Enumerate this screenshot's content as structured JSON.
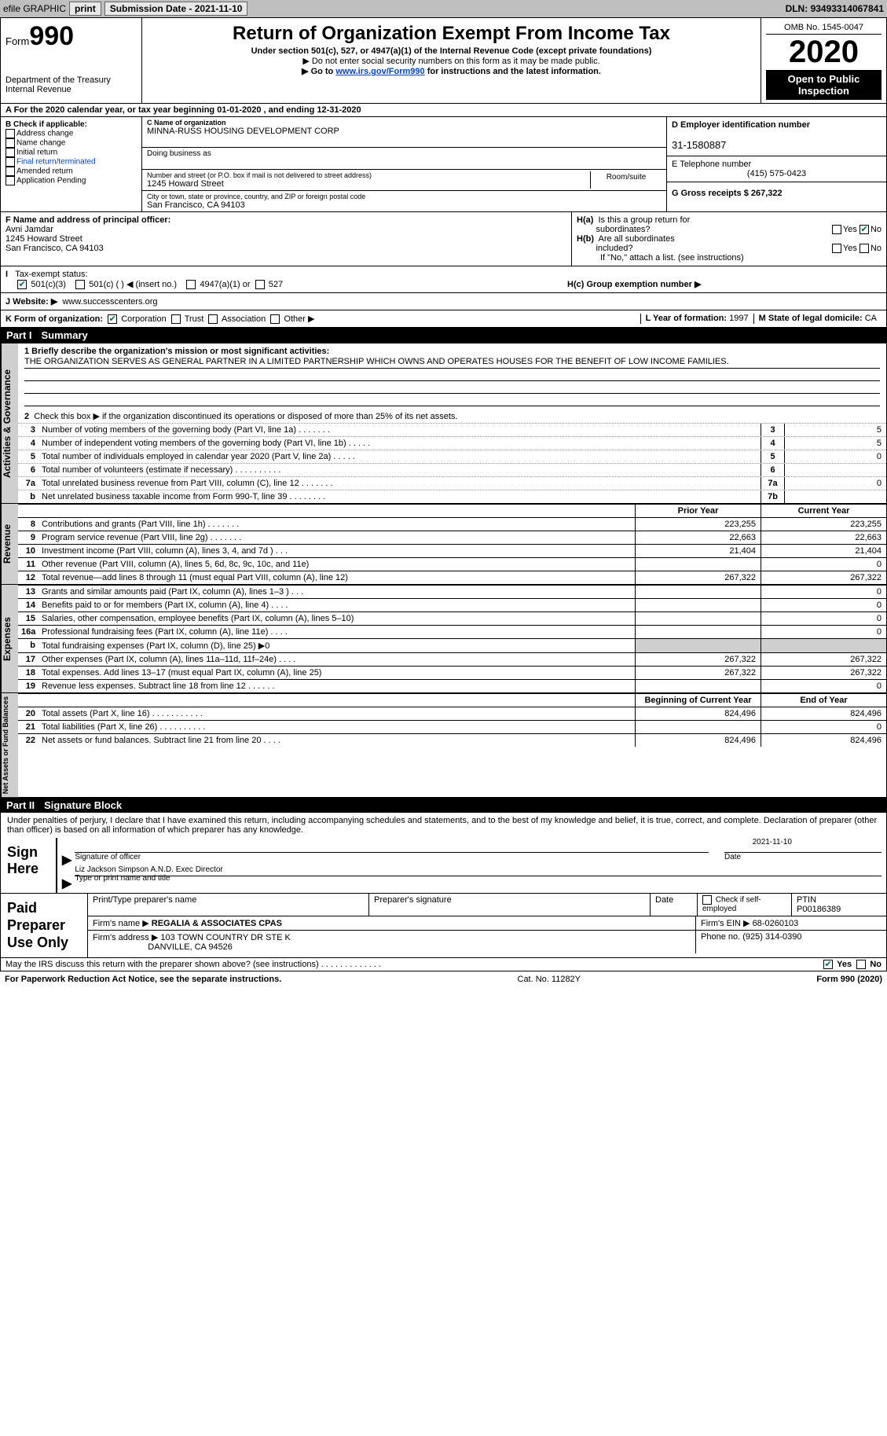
{
  "colors": {
    "header_bg": "#bfbfbf",
    "black": "#000000",
    "shade": "#cfcfcf",
    "link": "#0645ad",
    "check": "#00695c"
  },
  "top": {
    "efile": "efile GRAPHIC",
    "print": "print",
    "subdate_label": "Submission Date - ",
    "subdate": "2021-11-10",
    "dln_label": "DLN: ",
    "dln": "93493314067841"
  },
  "header": {
    "form_word": "Form",
    "form_num": "990",
    "dept": "Department of the Treasury",
    "irs": "Internal Revenue",
    "title": "Return of Organization Exempt From Income Tax",
    "sub": "Under section 501(c), 527, or 4947(a)(1) of the Internal Revenue Code (except private foundations)",
    "note1": "▶ Do not enter social security numbers on this form as it may be made public.",
    "note2_pre": "▶ Go to ",
    "note2_link": "www.irs.gov/Form990",
    "note2_post": " for instructions and the latest information.",
    "omb": "OMB No. 1545-0047",
    "year": "2020",
    "open1": "Open to Public",
    "open2": "Inspection"
  },
  "rowA": "A For the 2020 calendar year, or tax year beginning 01-01-2020   , and ending 12-31-2020",
  "colB": {
    "title": "B Check if applicable:",
    "opts": [
      "Address change",
      "Name change",
      "Initial return",
      "Final return/terminated",
      "Amended return",
      "Application Pending"
    ]
  },
  "colC": {
    "name_label": "C Name of organization",
    "name": "MINNA-RUSS HOUSING DEVELOPMENT CORP",
    "dba_label": "Doing business as",
    "dba": "",
    "addr_label": "Number and street (or P.O. box if mail is not delivered to street address)",
    "room": "Room/suite",
    "addr": "1245 Howard Street",
    "city_label": "City or town, state or province, country, and ZIP or foreign postal code",
    "city": "San Francisco, CA  94103"
  },
  "colD": {
    "d_label": "D Employer identification number",
    "ein": "31-1580887",
    "e_label": "E Telephone number",
    "phone": "(415) 575-0423",
    "g_label": "G Gross receipts $ ",
    "gross": "267,322"
  },
  "rowF": {
    "f_label": "F  Name and address of principal officer:",
    "f_name": "Avni Jamdar",
    "f_addr1": "1245 Howard Street",
    "f_addr2": "San Francisco, CA  94103",
    "ha_label": "H(a)  Is this a group return for subordinates?",
    "ha_yes": "Yes",
    "ha_no": "No",
    "hb_label": "H(b)  Are all subordinates included?",
    "hb_note": "If \"No,\" attach a list. (see instructions)"
  },
  "rowI": {
    "tax_label": "I    Tax-exempt status:",
    "o501c3": "501(c)(3)",
    "o501c": "501(c) (  ) ◀ (insert no.)",
    "o4947": "4947(a)(1) or",
    "o527": "527",
    "hc_label": "H(c)  Group exemption number ▶"
  },
  "rowJ": {
    "label": "J   Website: ▶",
    "site": "www.successcenters.org"
  },
  "rowK": {
    "label": "K Form of organization:",
    "opts": [
      "Corporation",
      "Trust",
      "Association",
      "Other ▶"
    ],
    "l_label": "L Year of formation: ",
    "l_val": "1997",
    "m_label": "M State of legal domicile: ",
    "m_val": "CA"
  },
  "partI": {
    "num": "Part I",
    "title": "Summary"
  },
  "gov": {
    "vert": "Activities & Governance",
    "q1_label": "1  Briefly describe the organization's mission or most significant activities:",
    "q1_val": "THE ORGANIZATION SERVES AS GENERAL PARTNER IN A LIMITED PARTNERSHIP WHICH OWNS AND OPERATES HOUSES FOR THE BENEFIT OF LOW INCOME FAMILIES.",
    "q2": "Check this box ▶  if the organization discontinued its operations or disposed of more than 25% of its net assets.",
    "rows": [
      {
        "n": "3",
        "label": "Number of voting members of the governing body (Part VI, line 1a)  .    .    .    .    .    .    .",
        "box": "3",
        "val": "5"
      },
      {
        "n": "4",
        "label": "Number of independent voting members of the governing body (Part VI, line 1b)  .    .    .    .    .",
        "box": "4",
        "val": "5"
      },
      {
        "n": "5",
        "label": "Total number of individuals employed in calendar year 2020 (Part V, line 2a)  .    .    .    .    .",
        "box": "5",
        "val": "0"
      },
      {
        "n": "6",
        "label": "Total number of volunteers (estimate if necessary)  .    .    .    .    .    .    .    .    .    .",
        "box": "6",
        "val": ""
      },
      {
        "n": "7a",
        "label": "Total unrelated business revenue from Part VIII, column (C), line 12  .    .    .    .    .    .    .",
        "box": "7a",
        "val": "0"
      },
      {
        "n": "b",
        "label": "Net unrelated business taxable income from Form 990-T, line 39  .    .    .    .    .    .    .    .",
        "box": "7b",
        "val": ""
      }
    ]
  },
  "cols": {
    "prior": "Prior Year",
    "current": "Current Year",
    "begin": "Beginning of Current Year",
    "end": "End of Year"
  },
  "rev": {
    "vert": "Revenue",
    "rows": [
      {
        "n": "8",
        "label": "Contributions and grants (Part VIII, line 1h)  .    .    .    .    .    .    .",
        "p": "223,255",
        "c": "223,255"
      },
      {
        "n": "9",
        "label": "Program service revenue (Part VIII, line 2g)  .    .    .    .    .    .    .",
        "p": "22,663",
        "c": "22,663"
      },
      {
        "n": "10",
        "label": "Investment income (Part VIII, column (A), lines 3, 4, and 7d )  .    .    .",
        "p": "21,404",
        "c": "21,404"
      },
      {
        "n": "11",
        "label": "Other revenue (Part VIII, column (A), lines 5, 6d, 8c, 9c, 10c, and 11e)",
        "p": "",
        "c": "0"
      },
      {
        "n": "12",
        "label": "Total revenue—add lines 8 through 11 (must equal Part VIII, column (A), line 12)",
        "p": "267,322",
        "c": "267,322"
      }
    ]
  },
  "exp": {
    "vert": "Expenses",
    "rows": [
      {
        "n": "13",
        "label": "Grants and similar amounts paid (Part IX, column (A), lines 1–3 )  .    .    .",
        "p": "",
        "c": "0"
      },
      {
        "n": "14",
        "label": "Benefits paid to or for members (Part IX, column (A), line 4)  .    .    .    .",
        "p": "",
        "c": "0"
      },
      {
        "n": "15",
        "label": "Salaries, other compensation, employee benefits (Part IX, column (A), lines 5–10)",
        "p": "",
        "c": "0"
      },
      {
        "n": "16a",
        "label": "Professional fundraising fees (Part IX, column (A), line 11e)  .    .    .    .",
        "p": "",
        "c": "0"
      },
      {
        "n": "b",
        "label": "Total fundraising expenses (Part IX, column (D), line 25) ▶0",
        "p": "shade",
        "c": "shade"
      },
      {
        "n": "17",
        "label": "Other expenses (Part IX, column (A), lines 11a–11d, 11f–24e)  .    .    .    .",
        "p": "267,322",
        "c": "267,322"
      },
      {
        "n": "18",
        "label": "Total expenses. Add lines 13–17 (must equal Part IX, column (A), line 25)",
        "p": "267,322",
        "c": "267,322"
      },
      {
        "n": "19",
        "label": "Revenue less expenses. Subtract line 18 from line 12  .    .    .    .    .    .",
        "p": "",
        "c": "0"
      }
    ]
  },
  "net": {
    "vert": "Net Assets or Fund Balances",
    "rows": [
      {
        "n": "20",
        "label": "Total assets (Part X, line 16)  .    .    .    .    .    .    .    .    .    .    .",
        "p": "824,496",
        "c": "824,496"
      },
      {
        "n": "21",
        "label": "Total liabilities (Part X, line 26)  .    .    .    .    .    .    .    .    .    .",
        "p": "",
        "c": "0"
      },
      {
        "n": "22",
        "label": "Net assets or fund balances. Subtract line 21 from line 20  .    .    .    .",
        "p": "824,496",
        "c": "824,496"
      }
    ]
  },
  "partII": {
    "num": "Part II",
    "title": "Signature Block"
  },
  "sig": {
    "declare": "Under penalties of perjury, I declare that I have examined this return, including accompanying schedules and statements, and to the best of my knowledge and belief, it is true, correct, and complete. Declaration of preparer (other than officer) is based on all information of which preparer has any knowledge.",
    "sign_here": "Sign Here",
    "sig_officer": "Signature of officer",
    "date": "Date",
    "sig_date": "2021-11-10",
    "name_title": "Liz Jackson Simpson  A.N.D. Exec Director",
    "type_label": "Type or print name and title"
  },
  "prep": {
    "label": "Paid Preparer Use Only",
    "r1": {
      "c1": "Print/Type preparer's name",
      "c2": "Preparer's signature",
      "c3": "Date",
      "c4": "Check      if self-employed",
      "c5": "PTIN",
      "ptin": "P00186389"
    },
    "r2": {
      "c1": "Firm's name    ▶",
      "v1": "REGALIA & ASSOCIATES CPAS",
      "c2": "Firm's EIN ▶",
      "v2": "68-0260103"
    },
    "r3": {
      "c1": "Firm's address ▶",
      "v1": "103 TOWN COUNTRY DR STE K",
      "v2": "DANVILLE, CA  94526",
      "c2": "Phone no.",
      "v3": "(925) 314-0390"
    }
  },
  "footer": {
    "discuss": "May the IRS discuss this return with the preparer shown above? (see instructions)  .    .    .    .    .    .    .    .    .    .    .    .    .",
    "yes": "Yes",
    "no": "No",
    "pra": "For Paperwork Reduction Act Notice, see the separate instructions.",
    "cat": "Cat. No. 11282Y",
    "form": "Form 990 (2020)"
  }
}
